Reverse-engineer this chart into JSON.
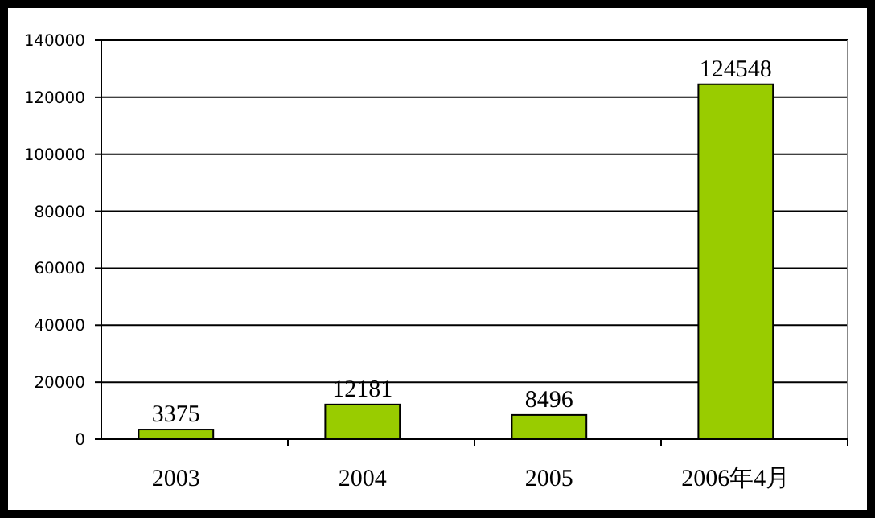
{
  "chart_data": {
    "type": "bar",
    "categories": [
      "2003",
      "2004",
      "2005",
      "2006年4月"
    ],
    "values": [
      3375,
      12181,
      8496,
      124548
    ],
    "color": "#99cc00",
    "ylim": [
      0,
      140000
    ],
    "yticks": [
      0,
      20000,
      40000,
      60000,
      80000,
      100000,
      120000,
      140000
    ],
    "grid": "y",
    "data_labels": true
  }
}
